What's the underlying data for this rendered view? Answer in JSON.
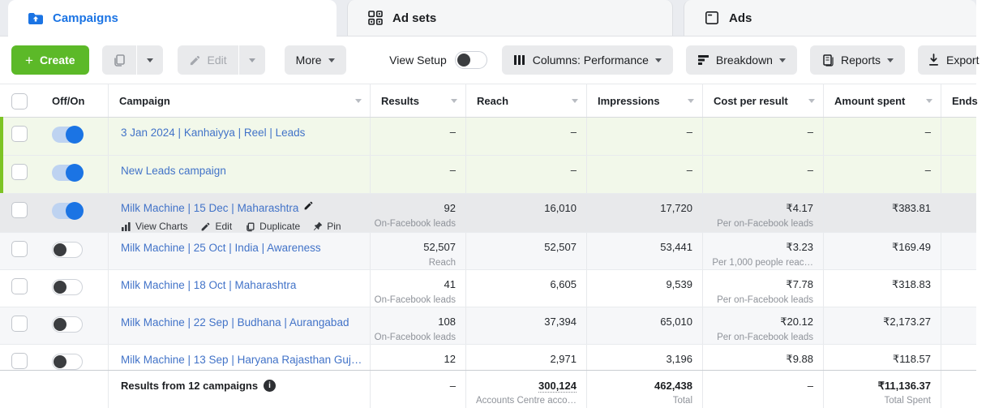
{
  "tabs": [
    {
      "label": "Campaigns",
      "active": true
    },
    {
      "label": "Ad sets",
      "active": false
    },
    {
      "label": "Ads",
      "active": false
    }
  ],
  "toolbar": {
    "create_label": "Create",
    "edit_label": "Edit",
    "more_label": "More",
    "view_setup_label": "View Setup",
    "columns_label": "Columns: Performance",
    "breakdown_label": "Breakdown",
    "reports_label": "Reports",
    "export_label": "Export"
  },
  "table": {
    "columns": [
      {
        "label": "Off/On",
        "sortable": false
      },
      {
        "label": "Campaign",
        "sortable": true
      },
      {
        "label": "Results",
        "sortable": true
      },
      {
        "label": "Reach",
        "sortable": true
      },
      {
        "label": "Impressions",
        "sortable": true
      },
      {
        "label": "Cost per result",
        "sortable": true
      },
      {
        "label": "Amount spent",
        "sortable": true
      },
      {
        "label": "Ends",
        "sortable": false
      }
    ],
    "rows": [
      {
        "name": "3 Jan 2024 | Kanhaiyya | Reel | Leads",
        "toggle": true,
        "style": "new",
        "results": "–",
        "results_label": "",
        "reach": "–",
        "impressions": "–",
        "cost": "–",
        "cost_label": "",
        "spent": "–",
        "ends": ""
      },
      {
        "name": "New Leads campaign",
        "toggle": true,
        "style": "new",
        "results": "–",
        "results_label": "",
        "reach": "–",
        "impressions": "–",
        "cost": "–",
        "cost_label": "",
        "spent": "–",
        "ends": ""
      },
      {
        "name": "Milk Machine | 15 Dec | Maharashtra",
        "toggle": true,
        "style": "hover",
        "edit_icon": true,
        "actions": [
          {
            "label": "View Charts",
            "icon": "view-charts"
          },
          {
            "label": "Edit",
            "icon": "edit"
          },
          {
            "label": "Duplicate",
            "icon": "duplicate"
          },
          {
            "label": "Pin",
            "icon": "pin"
          }
        ],
        "results": "92",
        "results_label": "On-Facebook leads",
        "reach": "16,010",
        "impressions": "17,720",
        "cost": "₹4.17",
        "cost_label": "Per on-Facebook leads",
        "spent": "₹383.81",
        "ends": ""
      },
      {
        "name": "Milk Machine | 25 Oct | India | Awareness",
        "toggle": false,
        "style": "alt",
        "results": "52,507",
        "results_label": "Reach",
        "reach": "52,507",
        "impressions": "53,441",
        "cost": "₹3.23",
        "cost_label": "Per 1,000 people reac…",
        "spent": "₹169.49",
        "ends": ""
      },
      {
        "name": "Milk Machine | 18 Oct | Maharashtra",
        "toggle": false,
        "style": "",
        "results": "41",
        "results_label": "On-Facebook leads",
        "reach": "6,605",
        "impressions": "9,539",
        "cost": "₹7.78",
        "cost_label": "Per on-Facebook leads",
        "spent": "₹318.83",
        "ends": ""
      },
      {
        "name": "Milk Machine | 22 Sep | Budhana | Aurangabad",
        "toggle": false,
        "style": "alt",
        "results": "108",
        "results_label": "On-Facebook leads",
        "reach": "37,394",
        "impressions": "65,010",
        "cost": "₹20.12",
        "cost_label": "Per on-Facebook leads",
        "spent": "₹2,173.27",
        "ends": ""
      },
      {
        "name": "Milk Machine | 13 Sep | Haryana Rajasthan Guj…",
        "toggle": false,
        "style": "",
        "results": "12",
        "results_label": "",
        "reach": "2,971",
        "impressions": "3,196",
        "cost": "₹9.88",
        "cost_label": "",
        "spent": "₹118.57",
        "ends": ""
      }
    ],
    "footer": {
      "summary": "Results from 12 campaigns",
      "results": "–",
      "reach": "300,124",
      "reach_label": "Accounts Centre acco…",
      "impressions": "462,438",
      "impressions_label": "Total",
      "cost": "–",
      "spent": "₹11,136.37",
      "spent_label": "Total Spent"
    }
  },
  "colors": {
    "accent_blue": "#1b74e4",
    "link_blue": "#4273c8",
    "create_green": "#5cb928",
    "new_row_green": "#f2f8ea",
    "hover_row_gray": "#e8e9eb"
  }
}
